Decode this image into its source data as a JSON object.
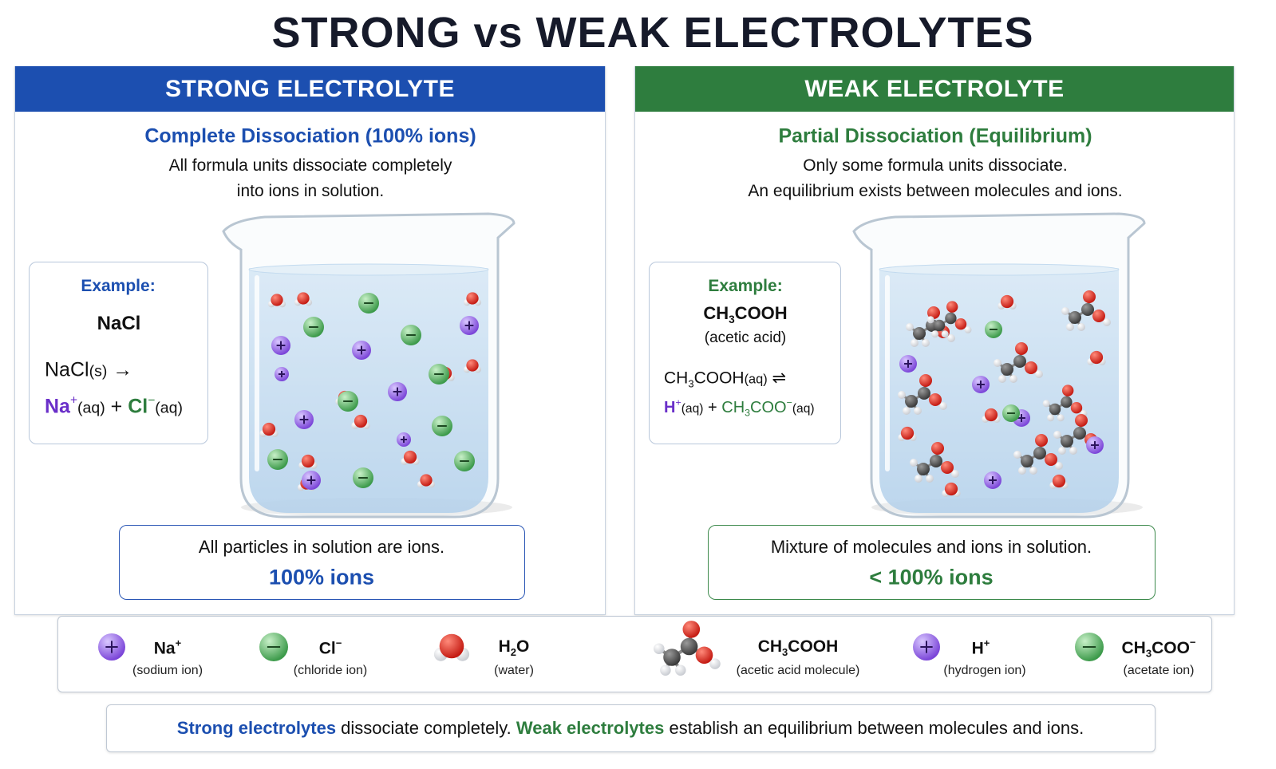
{
  "title": "STRONG vs WEAK ELECTROLYTES",
  "strong": {
    "header": "STRONG ELECTROLYTE",
    "subtitle": "Complete Dissociation (100% ions)",
    "description": [
      "All formula units dissociate completely",
      "into ions in solution."
    ],
    "example": {
      "label": "Example:",
      "name": "NaCl",
      "line1": [
        "NaCl",
        "(s)",
        "→"
      ],
      "line2": [
        "Na",
        "+",
        "(aq)",
        "+",
        "Cl",
        "−",
        "(aq)"
      ]
    },
    "summary": {
      "text": "All particles in solution are ions.",
      "highlight": "100% ions"
    }
  },
  "weak": {
    "header": "WEAK ELECTROLYTE",
    "subtitle": "Partial Dissociation (Equilibrium)",
    "description": [
      "Only some formula units dissociate.",
      "An equilibrium exists between molecules and ions."
    ],
    "example": {
      "label": "Example:",
      "name": [
        "CH",
        "3",
        "COOH"
      ],
      "note": "(acetic acid)",
      "line1": [
        "CH",
        "3",
        "COOH",
        "(aq)",
        "⇌"
      ],
      "line2": [
        "H",
        "+",
        "(aq)",
        "+",
        "CH",
        "3",
        "COO",
        "−",
        "(aq)"
      ]
    },
    "summary": {
      "text": "Mixture of molecules and ions in solution.",
      "highlight": "< 100% ions"
    }
  },
  "legend": [
    {
      "symbol": [
        "Na",
        "+"
      ],
      "caption": "(sodium ion)"
    },
    {
      "symbol": [
        "Cl",
        "−"
      ],
      "caption": "(chloride ion)"
    },
    {
      "symbol": [
        "H",
        "2",
        "O"
      ],
      "caption": "(water)"
    },
    {
      "symbol": [
        "CH",
        "3",
        "COOH"
      ],
      "caption": "(acetic acid molecule)"
    },
    {
      "symbol": [
        "H",
        "+"
      ],
      "caption": "(hydrogen ion)"
    },
    {
      "symbol": [
        "CH",
        "3",
        "COO",
        "−"
      ],
      "caption": "(acetate ion)"
    }
  ],
  "footer": [
    "Strong electrolytes",
    " dissociate completely. ",
    "Weak electrolytes",
    " establish an equilibrium between molecules and ions."
  ]
}
